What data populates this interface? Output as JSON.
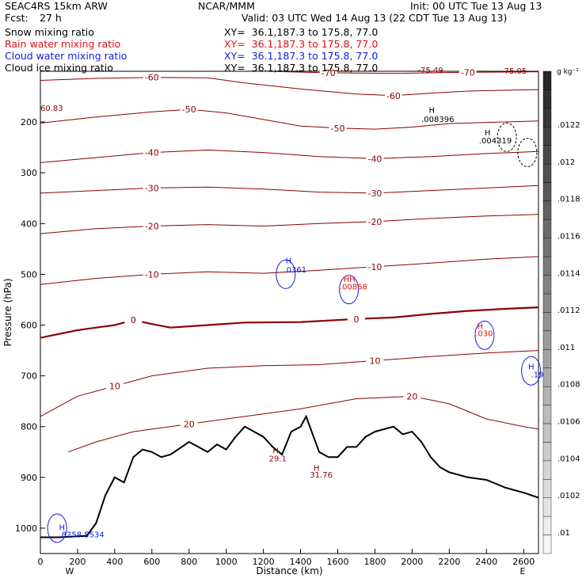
{
  "header": {
    "model": "SEAC4RS 15km ARW",
    "center": "NCAR/MMM",
    "init": "Init: 00 UTC Tue 13 Aug 13",
    "fcst_label": "Fcst:",
    "fcst_value": "27 h",
    "valid": "Valid: 03 UTC Wed 14 Aug 13 (22 CDT Tue 13 Aug 13)"
  },
  "fields": [
    {
      "name": "Snow mixing ratio",
      "xy": "XY=  36.1,187.3 to 175.8, 77.0",
      "color": "#000000"
    },
    {
      "name": "Rain water mixing ratio",
      "xy": "XY=  36.1,187.3 to 175.8, 77.0",
      "color": "#e01010"
    },
    {
      "name": "Cloud water mixing ratio",
      "xy": "XY=  36.1,187.3 to 175.8, 77.0",
      "color": "#1020e0"
    },
    {
      "name": "Cloud ice mixing ratio",
      "xy": "XY=  36.1,187.3 to 175.8, 77.0",
      "color": "#000000"
    }
  ],
  "colorbar": {
    "unit": "g kg⁻¹",
    "labels": [
      ".0122",
      ".012",
      ".0118",
      ".0116",
      ".0114",
      ".0112",
      ".011",
      ".0108",
      ".0106",
      ".0104",
      ".0102",
      ".01"
    ]
  },
  "chart_data": {
    "type": "contour",
    "xlabel": "Distance (km)",
    "ylabel": "Pressure (hPa)",
    "xlim": [
      0,
      2680
    ],
    "ylim": [
      1050,
      100
    ],
    "x_ticks": [
      "0",
      "200",
      "400",
      "600",
      "800",
      "1000",
      "1200",
      "1400",
      "1600",
      "1800",
      "2000",
      "2200",
      "2400",
      "2600"
    ],
    "y_ticks": [
      "200",
      "300",
      "400",
      "500",
      "600",
      "700",
      "800",
      "900",
      "1000"
    ],
    "endpoint_left": "W",
    "endpoint_right": "E",
    "temperature_contours": [
      {
        "label": "-70",
        "points": [
          [
            1200,
            100
          ],
          [
            1550,
            103
          ],
          [
            1900,
            104
          ],
          [
            2300,
            102
          ],
          [
            2680,
            101
          ]
        ]
      },
      {
        "label": "-60",
        "points": [
          [
            0,
            118
          ],
          [
            300,
            114
          ],
          [
            600,
            112
          ],
          [
            900,
            113
          ],
          [
            1100,
            123
          ],
          [
            1400,
            135
          ],
          [
            1700,
            145
          ],
          [
            1900,
            148
          ],
          [
            2100,
            143
          ],
          [
            2300,
            139
          ],
          [
            2680,
            136
          ]
        ]
      },
      {
        "label": "-50",
        "points": [
          [
            0,
            202
          ],
          [
            300,
            190
          ],
          [
            600,
            180
          ],
          [
            800,
            175
          ],
          [
            1000,
            182
          ],
          [
            1200,
            195
          ],
          [
            1400,
            208
          ],
          [
            1600,
            212
          ],
          [
            1800,
            214
          ],
          [
            2000,
            210
          ],
          [
            2200,
            203
          ],
          [
            2680,
            198
          ]
        ]
      },
      {
        "label": "-40",
        "points": [
          [
            0,
            280
          ],
          [
            300,
            270
          ],
          [
            600,
            260
          ],
          [
            900,
            255
          ],
          [
            1200,
            260
          ],
          [
            1500,
            268
          ],
          [
            1800,
            272
          ],
          [
            2100,
            268
          ],
          [
            2400,
            262
          ],
          [
            2680,
            258
          ]
        ]
      },
      {
        "label": "-30",
        "points": [
          [
            0,
            340
          ],
          [
            300,
            335
          ],
          [
            600,
            330
          ],
          [
            900,
            328
          ],
          [
            1200,
            332
          ],
          [
            1500,
            338
          ],
          [
            1800,
            340
          ],
          [
            2100,
            335
          ],
          [
            2400,
            330
          ],
          [
            2680,
            325
          ]
        ]
      },
      {
        "label": "-20",
        "points": [
          [
            0,
            420
          ],
          [
            300,
            410
          ],
          [
            600,
            405
          ],
          [
            900,
            402
          ],
          [
            1200,
            405
          ],
          [
            1500,
            400
          ],
          [
            1800,
            396
          ],
          [
            2100,
            390
          ],
          [
            2400,
            385
          ],
          [
            2680,
            382
          ]
        ]
      },
      {
        "label": "-10",
        "points": [
          [
            0,
            520
          ],
          [
            300,
            508
          ],
          [
            600,
            500
          ],
          [
            900,
            495
          ],
          [
            1200,
            498
          ],
          [
            1500,
            492
          ],
          [
            1800,
            485
          ],
          [
            2100,
            478
          ],
          [
            2400,
            470
          ],
          [
            2680,
            465
          ]
        ]
      },
      {
        "label": "0",
        "heavy": true,
        "points": [
          [
            0,
            625
          ],
          [
            200,
            610
          ],
          [
            400,
            600
          ],
          [
            500,
            590
          ],
          [
            600,
            598
          ],
          [
            700,
            605
          ],
          [
            900,
            600
          ],
          [
            1100,
            595
          ],
          [
            1400,
            594
          ],
          [
            1700,
            588
          ],
          [
            1900,
            585
          ],
          [
            2100,
            578
          ],
          [
            2300,
            572
          ],
          [
            2500,
            568
          ],
          [
            2680,
            565
          ]
        ]
      },
      {
        "label": "10",
        "points": [
          [
            0,
            780
          ],
          [
            200,
            740
          ],
          [
            400,
            720
          ],
          [
            600,
            700
          ],
          [
            900,
            685
          ],
          [
            1200,
            680
          ],
          [
            1500,
            678
          ],
          [
            1800,
            670
          ],
          [
            2100,
            662
          ],
          [
            2400,
            655
          ],
          [
            2680,
            650
          ]
        ]
      },
      {
        "label": "20",
        "points": [
          [
            150,
            850
          ],
          [
            300,
            830
          ],
          [
            500,
            810
          ],
          [
            800,
            795
          ],
          [
            1100,
            780
          ],
          [
            1400,
            765
          ],
          [
            1700,
            745
          ],
          [
            2000,
            740
          ],
          [
            2200,
            755
          ],
          [
            2400,
            785
          ],
          [
            2600,
            800
          ],
          [
            2680,
            805
          ]
        ]
      }
    ],
    "terrain_profile": [
      [
        0,
        1018
      ],
      [
        100,
        1018
      ],
      [
        250,
        1015
      ],
      [
        300,
        990
      ],
      [
        350,
        935
      ],
      [
        400,
        900
      ],
      [
        450,
        910
      ],
      [
        500,
        860
      ],
      [
        550,
        845
      ],
      [
        600,
        850
      ],
      [
        650,
        860
      ],
      [
        700,
        855
      ],
      [
        800,
        830
      ],
      [
        850,
        840
      ],
      [
        900,
        850
      ],
      [
        950,
        835
      ],
      [
        1000,
        845
      ],
      [
        1050,
        820
      ],
      [
        1100,
        800
      ],
      [
        1150,
        810
      ],
      [
        1200,
        820
      ],
      [
        1250,
        840
      ],
      [
        1300,
        855
      ],
      [
        1350,
        810
      ],
      [
        1400,
        800
      ],
      [
        1430,
        780
      ],
      [
        1470,
        820
      ],
      [
        1500,
        850
      ],
      [
        1550,
        860
      ],
      [
        1600,
        860
      ],
      [
        1650,
        840
      ],
      [
        1700,
        840
      ],
      [
        1750,
        820
      ],
      [
        1800,
        810
      ],
      [
        1850,
        805
      ],
      [
        1900,
        800
      ],
      [
        1950,
        815
      ],
      [
        2000,
        810
      ],
      [
        2050,
        830
      ],
      [
        2100,
        860
      ],
      [
        2150,
        880
      ],
      [
        2200,
        890
      ],
      [
        2300,
        900
      ],
      [
        2400,
        905
      ],
      [
        2500,
        920
      ],
      [
        2600,
        930
      ],
      [
        2680,
        940
      ]
    ],
    "point_labels": [
      {
        "text": "-75.49",
        "x": 2030,
        "y": 103,
        "color": "#8b0000"
      },
      {
        "text": "-75.05",
        "x": 2480,
        "y": 105,
        "color": "#8b0000"
      },
      {
        "text": "60.83",
        "x": 0,
        "y": 178,
        "color": "#8b0000"
      },
      {
        "text": "H",
        "x": 2090,
        "y": 182,
        "color": "#000000"
      },
      {
        "text": ".008396",
        "x": 2050,
        "y": 200,
        "color": "#000000"
      },
      {
        "text": "H",
        "x": 2390,
        "y": 226,
        "color": "#000000"
      },
      {
        "text": ".004319",
        "x": 2360,
        "y": 242,
        "color": "#000000"
      },
      {
        "text": "H",
        "x": 1320,
        "y": 478,
        "color": "#1020e0"
      },
      {
        "text": ".0361",
        "x": 1310,
        "y": 496,
        "color": "#1020e0"
      },
      {
        "text": "HH",
        "x": 1630,
        "y": 515,
        "color": "#e01010"
      },
      {
        "text": ".00868",
        "x": 1610,
        "y": 530,
        "color": "#e01010"
      },
      {
        "text": "H",
        "x": 2350,
        "y": 608,
        "color": "#e01010"
      },
      {
        "text": ".030",
        "x": 2340,
        "y": 622,
        "color": "#e01010"
      },
      {
        "text": "H",
        "x": 2625,
        "y": 687,
        "color": "#1020e0"
      },
      {
        "text": ".19",
        "x": 2640,
        "y": 703,
        "color": "#1020e0"
      },
      {
        "text": "H",
        "x": 1250,
        "y": 853,
        "color": "#8b0000"
      },
      {
        "text": "29.1",
        "x": 1230,
        "y": 868,
        "color": "#8b0000"
      },
      {
        "text": "H",
        "x": 1470,
        "y": 887,
        "color": "#8b0000"
      },
      {
        "text": "31.76",
        "x": 1450,
        "y": 900,
        "color": "#8b0000"
      },
      {
        "text": "H",
        "x": 100,
        "y": 1004,
        "color": "#1020e0"
      },
      {
        "text": ".8258.5534",
        "x": 100,
        "y": 1018,
        "color": "#1020e0"
      }
    ]
  }
}
